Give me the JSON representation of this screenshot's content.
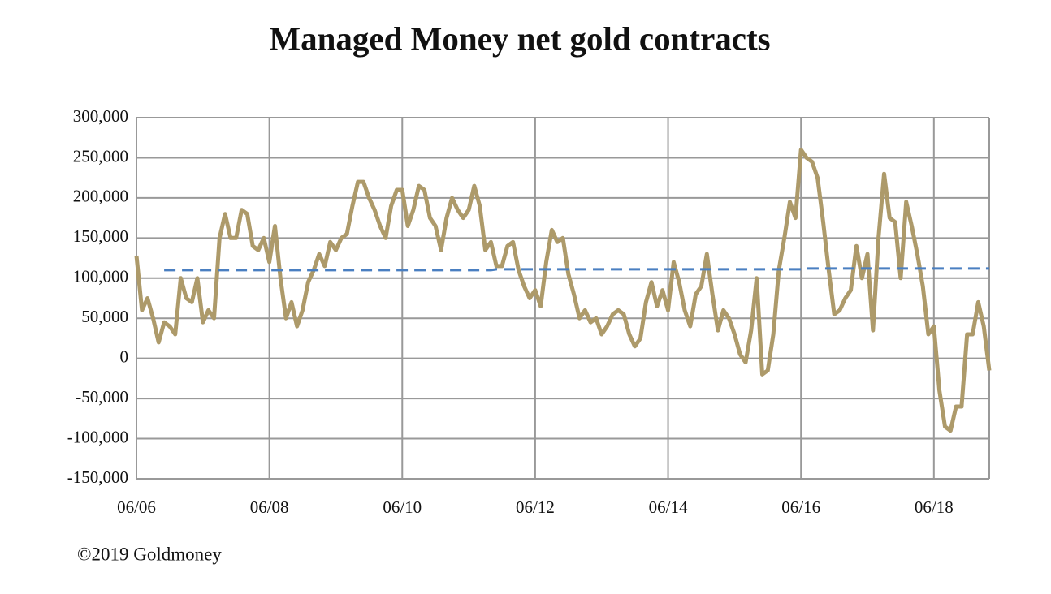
{
  "chart_data": {
    "type": "line",
    "title": "Managed Money net gold contracts",
    "footer": "©2019 Goldmoney",
    "categories": [
      "06/06",
      null,
      null,
      null,
      null,
      null,
      null,
      null,
      null,
      null,
      null,
      null,
      null,
      null,
      null,
      null,
      null,
      null,
      null,
      null,
      null,
      null,
      null,
      null,
      "06/08",
      null,
      null,
      null,
      null,
      null,
      null,
      null,
      null,
      null,
      null,
      null,
      null,
      null,
      null,
      null,
      null,
      null,
      null,
      null,
      null,
      null,
      null,
      null,
      "06/10",
      null,
      null,
      null,
      null,
      null,
      null,
      null,
      null,
      null,
      null,
      null,
      null,
      null,
      null,
      null,
      null,
      null,
      null,
      null,
      null,
      null,
      null,
      null,
      "06/12",
      null,
      null,
      null,
      null,
      null,
      null,
      null,
      null,
      null,
      null,
      null,
      null,
      null,
      null,
      null,
      null,
      null,
      null,
      null,
      null,
      null,
      null,
      null,
      "06/14",
      null,
      null,
      null,
      null,
      null,
      null,
      null,
      null,
      null,
      null,
      null,
      null,
      null,
      null,
      null,
      null,
      null,
      null,
      null,
      null,
      null,
      null,
      null,
      "06/16",
      null,
      null,
      null,
      null,
      null,
      null,
      null,
      null,
      null,
      null,
      null,
      null,
      null,
      null,
      null,
      null,
      null,
      null,
      null,
      null,
      null,
      null,
      null,
      "06/18",
      null,
      null,
      null,
      null,
      null,
      null,
      null,
      null,
      null,
      null
    ],
    "series": [
      {
        "color": "#ad9a6a",
        "values": [
          128000,
          60000,
          75000,
          50000,
          20000,
          45000,
          40000,
          30000,
          100000,
          75000,
          70000,
          100000,
          45000,
          60000,
          50000,
          150000,
          180000,
          150000,
          150000,
          185000,
          180000,
          140000,
          135000,
          150000,
          120000,
          165000,
          100000,
          50000,
          70000,
          40000,
          60000,
          95000,
          110000,
          130000,
          115000,
          145000,
          135000,
          150000,
          155000,
          190000,
          220000,
          220000,
          200000,
          185000,
          165000,
          150000,
          190000,
          210000,
          210000,
          165000,
          185000,
          215000,
          210000,
          175000,
          165000,
          135000,
          175000,
          200000,
          185000,
          175000,
          185000,
          215000,
          190000,
          135000,
          145000,
          115000,
          115000,
          140000,
          145000,
          110000,
          90000,
          75000,
          85000,
          65000,
          120000,
          160000,
          145000,
          150000,
          105000,
          80000,
          50000,
          60000,
          45000,
          50000,
          30000,
          40000,
          55000,
          60000,
          55000,
          30000,
          15000,
          25000,
          70000,
          95000,
          65000,
          85000,
          60000,
          120000,
          95000,
          60000,
          40000,
          80000,
          90000,
          130000,
          80000,
          35000,
          60000,
          50000,
          30000,
          5000,
          -5000,
          35000,
          100000,
          -20000,
          -15000,
          30000,
          110000,
          150000,
          195000,
          175000,
          260000,
          250000,
          245000,
          225000,
          170000,
          110000,
          55000,
          60000,
          75000,
          85000,
          140000,
          100000,
          130000,
          35000,
          150000,
          230000,
          175000,
          170000,
          100000,
          195000,
          165000,
          130000,
          90000,
          30000,
          40000,
          -40000,
          -85000,
          -90000,
          -60000,
          -60000,
          30000,
          30000,
          70000,
          40000,
          -15000
        ]
      },
      {
        "color": "#4a7fc1",
        "dashed": true,
        "values": [
          null,
          null,
          null,
          null,
          null,
          110000,
          110000,
          110000,
          110000,
          110000,
          110000,
          110000,
          110000,
          110000,
          110000,
          110000,
          110000,
          110000,
          110000,
          110000,
          110000,
          110000,
          110000,
          110000,
          110000,
          110000,
          110000,
          110000,
          110000,
          110000,
          110000,
          110000,
          110000,
          110000,
          110000,
          110000,
          110000,
          110000,
          110000,
          110000,
          110000,
          110000,
          110000,
          110000,
          110000,
          110000,
          110000,
          110000,
          110000,
          110000,
          110000,
          110000,
          110000,
          110000,
          110000,
          110000,
          110000,
          110000,
          110000,
          110000,
          110000,
          110000,
          110000,
          110000,
          110000,
          111000,
          111000,
          111000,
          111000,
          111000,
          111000,
          111000,
          111000,
          111000,
          111000,
          111000,
          111000,
          111000,
          111000,
          111000,
          111000,
          111000,
          111000,
          111000,
          111000,
          111000,
          111000,
          111000,
          111000,
          111000,
          111000,
          111000,
          111000,
          111000,
          111000,
          111000,
          111000,
          111000,
          111000,
          111000,
          111000,
          111000,
          111000,
          111000,
          111000,
          111000,
          111000,
          111000,
          111000,
          111000,
          111000,
          111000,
          111000,
          111000,
          111000,
          111000,
          111000,
          111000,
          111000,
          111000,
          111000,
          112000,
          112000,
          112000,
          112000,
          112000,
          112000,
          112000,
          112000,
          112000,
          112000,
          112000,
          112000,
          112000,
          112000,
          112000,
          112000,
          112000,
          112000,
          112000,
          112000,
          112000,
          112000,
          112000,
          112000,
          112000,
          112000,
          112000,
          112000,
          112000,
          112000,
          112000,
          112000,
          112000,
          112000
        ]
      }
    ],
    "ylim": [
      -150000,
      300000
    ],
    "yticks": [
      {
        "value": -150000,
        "label": "-150,000"
      },
      {
        "value": -100000,
        "label": "-100,000"
      },
      {
        "value": -50000,
        "label": "-50,000"
      },
      0,
      {
        "value": 50000,
        "label": "50,000"
      },
      {
        "value": 100000,
        "label": "100,000"
      },
      {
        "value": 150000,
        "label": "150,000"
      },
      {
        "value": 200000,
        "label": "200,000"
      },
      {
        "value": 250000,
        "label": "250,000"
      },
      {
        "value": 300000,
        "label": "300,000"
      }
    ],
    "grid": true
  }
}
